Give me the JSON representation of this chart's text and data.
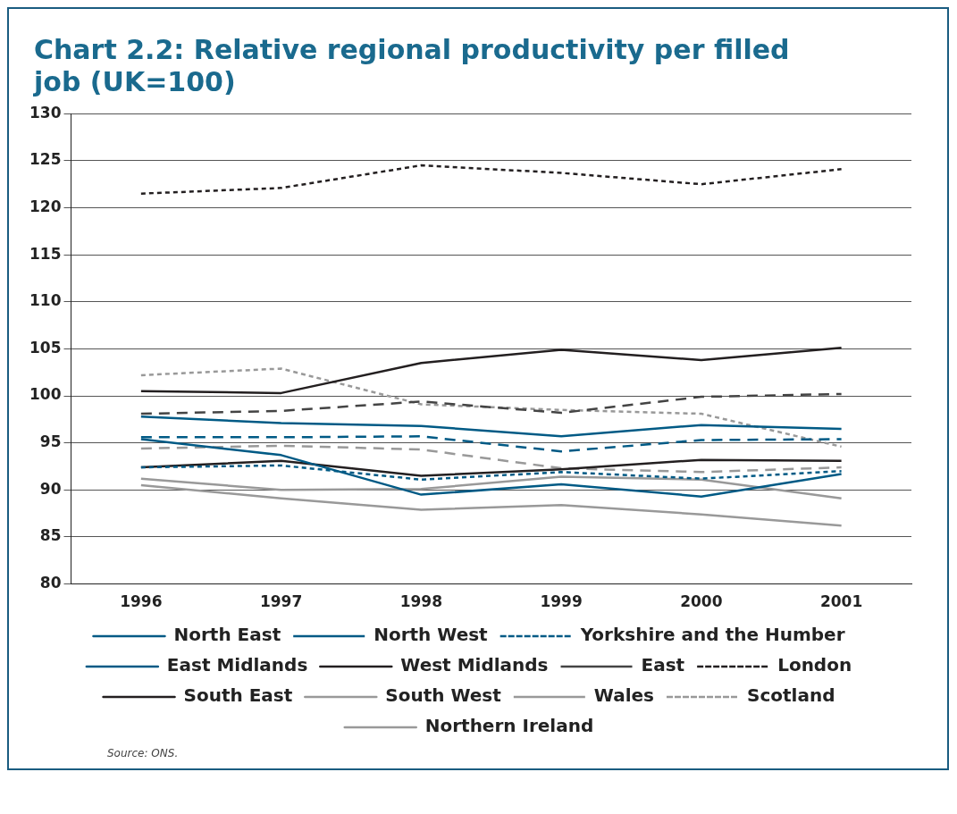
{
  "chart_data": {
    "type": "line",
    "title": "Chart 2.2: Relative regional productivity per filled job (UK=100)",
    "categories": [
      "1996",
      "1997",
      "1998",
      "1999",
      "2000",
      "2001"
    ],
    "ylim": [
      80,
      130
    ],
    "yticks": [
      80,
      85,
      90,
      95,
      100,
      105,
      110,
      115,
      120,
      125,
      130
    ],
    "grid": "y",
    "legend": "bottom",
    "marker": "none",
    "annotations": [
      "Source: ONS."
    ],
    "series": [
      {
        "name": "North East",
        "color": "#005a85",
        "line_style": "solid",
        "values": [
          95.4,
          93.7,
          89.5,
          90.6,
          89.3,
          91.7
        ]
      },
      {
        "name": "North West",
        "color": "#005a85",
        "line_style": "dashed",
        "values": [
          95.6,
          95.6,
          95.7,
          94.1,
          95.3,
          95.4
        ]
      },
      {
        "name": "Yorkshire and the Humber",
        "color": "#005a85",
        "line_style": "dotted",
        "values": [
          92.4,
          92.6,
          91.1,
          91.9,
          91.2,
          92.0
        ]
      },
      {
        "name": "East Midlands",
        "color": "#005a85",
        "line_style": "solid",
        "values": [
          97.8,
          97.1,
          96.8,
          95.7,
          96.9,
          96.5
        ]
      },
      {
        "name": "West Midlands",
        "color": "#231f20",
        "line_style": "solid",
        "values": [
          92.4,
          93.1,
          91.5,
          92.2,
          93.2,
          93.1
        ]
      },
      {
        "name": "East",
        "color": "#444444",
        "line_style": "dashed",
        "values": [
          98.1,
          98.4,
          99.4,
          98.2,
          99.9,
          100.2
        ]
      },
      {
        "name": "London",
        "color": "#231f20",
        "line_style": "dotted",
        "values": [
          121.5,
          122.1,
          124.5,
          123.7,
          122.5,
          124.1
        ]
      },
      {
        "name": "South East",
        "color": "#231f20",
        "line_style": "solid",
        "values": [
          100.5,
          100.3,
          103.5,
          104.9,
          103.8,
          105.1
        ]
      },
      {
        "name": "South West",
        "color": "#999999",
        "line_style": "solid",
        "values": [
          91.2,
          90.0,
          90.1,
          91.4,
          91.1,
          89.1
        ]
      },
      {
        "name": "Wales",
        "color": "#999999",
        "line_style": "dashed",
        "values": [
          94.4,
          94.7,
          94.3,
          92.3,
          91.9,
          92.4
        ]
      },
      {
        "name": "Scotland",
        "color": "#999999",
        "line_style": "dotted",
        "values": [
          102.2,
          102.9,
          99.1,
          98.5,
          98.1,
          94.6
        ]
      },
      {
        "name": "Northern Ireland",
        "color": "#999999",
        "line_style": "solid",
        "values": [
          90.5,
          89.1,
          87.9,
          88.4,
          87.4,
          86.2
        ]
      }
    ]
  }
}
